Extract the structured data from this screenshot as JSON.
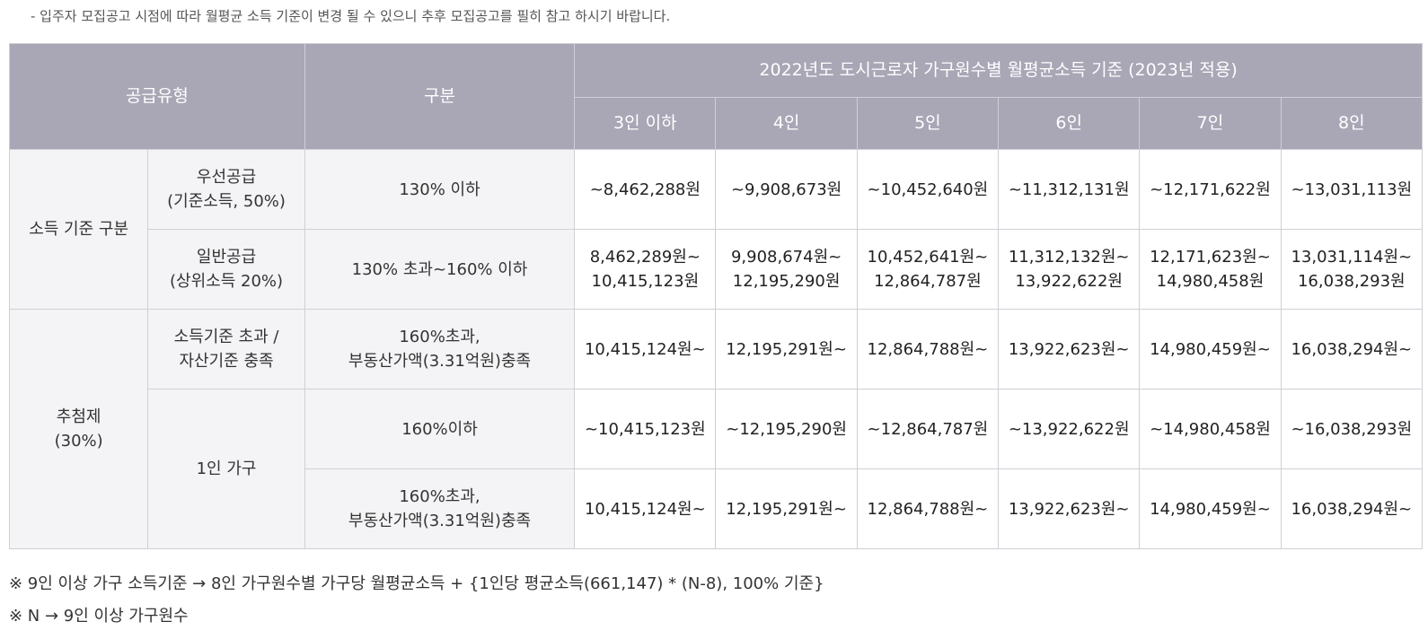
{
  "top_note": "- 입주자 모집공고 시점에 따라 월평균 소득 기준이 변경 될 수 있으니 추후 모집공고를 필히 참고 하시기 바랍니다.",
  "header": {
    "supply_type": "공급유형",
    "category": "구분",
    "income_title": "2022년도 도시근로자 가구원수별 월평균소득 기준 (2023년 적용)",
    "household_sizes": [
      "3인 이하",
      "4인",
      "5인",
      "6인",
      "7인",
      "8인"
    ]
  },
  "groups": {
    "income_basis": "소득 기준 구분",
    "lottery_line1": "추첨제",
    "lottery_line2": "(30%)"
  },
  "rows": [
    {
      "type_line1": "우선공급",
      "type_line2": "(기준소득, 50%)",
      "category_line1": "130% 이하",
      "category_line2": "",
      "values": [
        [
          "~8,462,288원",
          ""
        ],
        [
          "~9,908,673원",
          ""
        ],
        [
          "~10,452,640원",
          ""
        ],
        [
          "~11,312,131원",
          ""
        ],
        [
          "~12,171,622원",
          ""
        ],
        [
          "~13,031,113원",
          ""
        ]
      ]
    },
    {
      "type_line1": "일반공급",
      "type_line2": "(상위소득 20%)",
      "category_line1": "130% 초과~160% 이하",
      "category_line2": "",
      "values": [
        [
          "8,462,289원~",
          "10,415,123원"
        ],
        [
          "9,908,674원~",
          "12,195,290원"
        ],
        [
          "10,452,641원~",
          "12,864,787원"
        ],
        [
          "11,312,132원~",
          "13,922,622원"
        ],
        [
          "12,171,623원~",
          "14,980,458원"
        ],
        [
          "13,031,114원~",
          "16,038,293원"
        ]
      ]
    },
    {
      "type_line1": "소득기준 초과 /",
      "type_line2": "자산기준 충족",
      "category_line1": "160%초과,",
      "category_line2": "부동산가액(3.31억원)충족",
      "values": [
        [
          "10,415,124원~",
          ""
        ],
        [
          "12,195,291원~",
          ""
        ],
        [
          "12,864,788원~",
          ""
        ],
        [
          "13,922,623원~",
          ""
        ],
        [
          "14,980,459원~",
          ""
        ],
        [
          "16,038,294원~",
          ""
        ]
      ]
    },
    {
      "type_line1": "1인 가구",
      "type_line2": "",
      "category_line1": "160%이하",
      "category_line2": "",
      "values": [
        [
          "~10,415,123원",
          ""
        ],
        [
          "~12,195,290원",
          ""
        ],
        [
          "~12,864,787원",
          ""
        ],
        [
          "~13,922,622원",
          ""
        ],
        [
          "~14,980,458원",
          ""
        ],
        [
          "~16,038,293원",
          ""
        ]
      ]
    },
    {
      "type_line1": "",
      "type_line2": "",
      "category_line1": "160%초과,",
      "category_line2": "부동산가액(3.31억원)충족",
      "values": [
        [
          "10,415,124원~",
          ""
        ],
        [
          "12,195,291원~",
          ""
        ],
        [
          "12,864,788원~",
          ""
        ],
        [
          "13,922,623원~",
          ""
        ],
        [
          "14,980,459원~",
          ""
        ],
        [
          "16,038,294원~",
          ""
        ]
      ]
    }
  ],
  "footnotes": [
    "※ 9인 이상 가구 소득기준 → 8인 가구원수별 가구당 월평균소득 + {1인당 평균소득(661,147) * (N-8), 100% 기준}",
    "※ N → 9인 이상 가구원수"
  ]
}
